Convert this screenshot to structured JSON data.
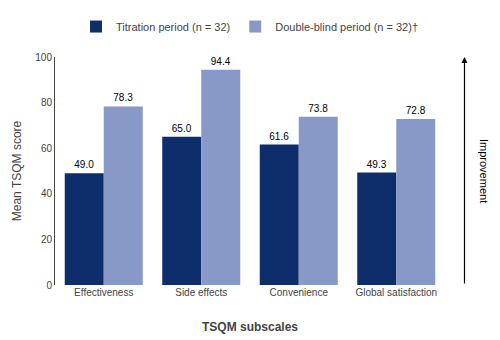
{
  "chart_data": {
    "type": "bar",
    "categories": [
      "Effectiveness",
      "Side effects",
      "Convenience",
      "Global satisfaction"
    ],
    "series": [
      {
        "name": "Titration period (n = 32)",
        "color": "#0d2d6b",
        "values": [
          49.0,
          65.0,
          61.6,
          49.3
        ],
        "value_labels": [
          "49.0",
          "65.0",
          "61.6",
          "49.3"
        ]
      },
      {
        "name": "Double-blind period (n = 32)†",
        "color": "#8899c8",
        "values": [
          78.3,
          94.4,
          73.8,
          72.8
        ],
        "value_labels": [
          "78.3",
          "94.4",
          "73.8",
          "72.8"
        ]
      }
    ],
    "xlabel": "TSQM subscales",
    "ylabel": "Mean TSQM score",
    "ylim": [
      0,
      100
    ],
    "yticks": [
      0,
      20,
      40,
      60,
      80,
      100
    ],
    "grid": false,
    "legend": "top",
    "data_labels": true,
    "annotations": [
      "Improvement"
    ]
  }
}
